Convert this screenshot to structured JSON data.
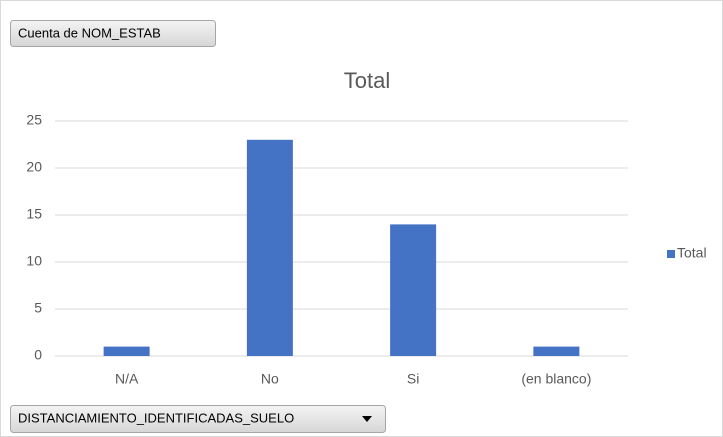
{
  "chart_data": {
    "type": "bar",
    "title": "Total",
    "field_buttons": {
      "values_field": "Cuenta de NOM_ESTAB",
      "axis_field": "DISTANCIAMIENTO_IDENTIFICADAS_SUELO"
    },
    "categories": [
      "N/A",
      "No",
      "Si",
      "(en blanco)"
    ],
    "series": [
      {
        "name": "Total",
        "color": "#4472c4",
        "values": [
          1,
          23,
          14,
          1
        ]
      }
    ],
    "ylim": [
      0,
      25
    ],
    "yticks": [
      0,
      5,
      10,
      15,
      20,
      25
    ],
    "grid": true,
    "legend": "right"
  }
}
